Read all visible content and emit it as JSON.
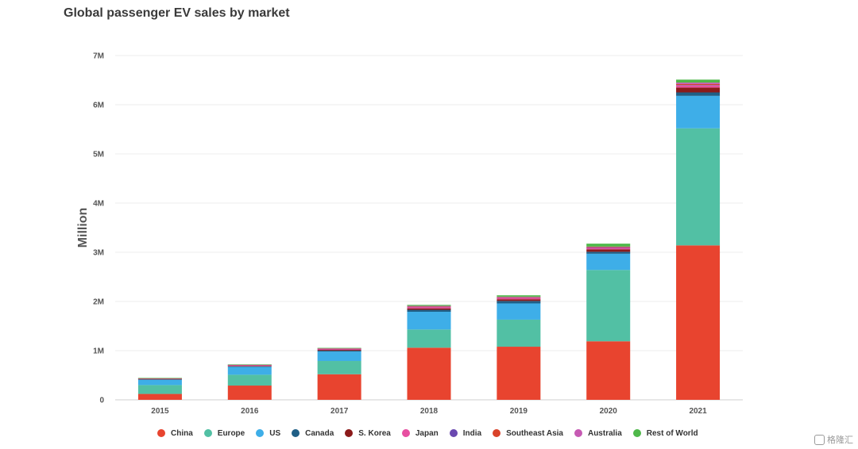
{
  "chart_data": {
    "type": "bar",
    "stacked": true,
    "title": "Global passenger EV sales by market",
    "ylabel": "Million",
    "xlabel": "",
    "ylim": [
      0,
      7
    ],
    "yticks": [
      {
        "value": 0,
        "label": "0"
      },
      {
        "value": 1,
        "label": "1M"
      },
      {
        "value": 2,
        "label": "2M"
      },
      {
        "value": 3,
        "label": "3M"
      },
      {
        "value": 4,
        "label": "4M"
      },
      {
        "value": 5,
        "label": "5M"
      },
      {
        "value": 6,
        "label": "6M"
      },
      {
        "value": 7,
        "label": "7M"
      }
    ],
    "grid": true,
    "legend_position": "bottom",
    "categories": [
      "2015",
      "2016",
      "2017",
      "2018",
      "2019",
      "2020",
      "2021"
    ],
    "series": [
      {
        "name": "China",
        "color": "#e8442f",
        "values": [
          0.12,
          0.29,
          0.52,
          1.06,
          1.08,
          1.19,
          3.14
        ]
      },
      {
        "name": "Europe",
        "color": "#52c0a4",
        "values": [
          0.18,
          0.22,
          0.27,
          0.37,
          0.55,
          1.45,
          2.38
        ]
      },
      {
        "name": "US",
        "color": "#3eaee8",
        "values": [
          0.11,
          0.16,
          0.19,
          0.36,
          0.33,
          0.33,
          0.66
        ]
      },
      {
        "name": "Canada",
        "color": "#1f5f86",
        "values": [
          0.01,
          0.01,
          0.02,
          0.04,
          0.05,
          0.04,
          0.07
        ]
      },
      {
        "name": "S. Korea",
        "color": "#8b1a1a",
        "values": [
          0.005,
          0.01,
          0.015,
          0.03,
          0.035,
          0.05,
          0.1
        ]
      },
      {
        "name": "Japan",
        "color": "#e74fa1",
        "values": [
          0.01,
          0.015,
          0.02,
          0.03,
          0.03,
          0.03,
          0.04
        ]
      },
      {
        "name": "India",
        "color": "#6a48b0",
        "values": [
          0.002,
          0.003,
          0.003,
          0.005,
          0.005,
          0.005,
          0.01
        ]
      },
      {
        "name": "Southeast Asia",
        "color": "#d9432a",
        "values": [
          0.002,
          0.003,
          0.003,
          0.005,
          0.005,
          0.01,
          0.02
        ]
      },
      {
        "name": "Australia",
        "color": "#c65ab3",
        "values": [
          0.003,
          0.004,
          0.005,
          0.01,
          0.01,
          0.01,
          0.03
        ]
      },
      {
        "name": "Rest of World",
        "color": "#4fb84a",
        "values": [
          0.003,
          0.005,
          0.01,
          0.02,
          0.03,
          0.06,
          0.06
        ]
      }
    ]
  },
  "watermark": {
    "text": "格隆汇"
  }
}
